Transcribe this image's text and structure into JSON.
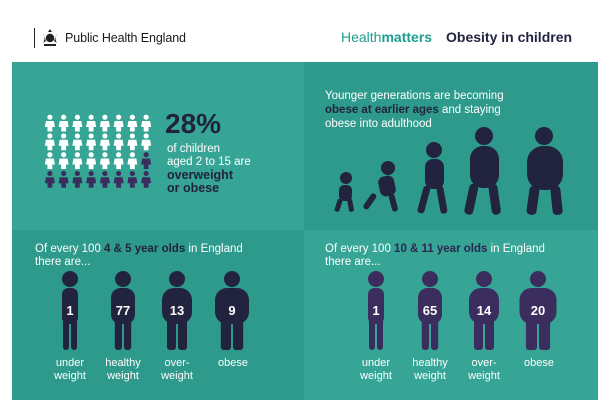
{
  "header": {
    "org_name": "Public Health England",
    "brand_light": "Health",
    "brand_bold": "matters",
    "topic": "Obesity in children"
  },
  "stat": {
    "percent": "28%",
    "line1": "of children",
    "line2": "aged 2 to 15 are",
    "emph1": "overweight",
    "emph2": "or obese",
    "share_dark": 0.28
  },
  "generations": {
    "line1_plain": "Younger generations are becoming",
    "line2_hl": "obese at earlier ages",
    "line2_plain": " and staying",
    "line3_plain": "obese into adulthood"
  },
  "group_4_5": {
    "prefix": "Of every 100 ",
    "hl": "4 & 5 year olds",
    "suffix": " in England",
    "line2": "there are...",
    "figures": [
      {
        "value": "1",
        "label1": "under",
        "label2": "weight"
      },
      {
        "value": "77",
        "label1": "healthy",
        "label2": "weight"
      },
      {
        "value": "13",
        "label1": "over-",
        "label2": "weight"
      },
      {
        "value": "9",
        "label1": "obese",
        "label2": ""
      }
    ]
  },
  "group_10_11": {
    "prefix": "Of every 100 ",
    "hl": "10 & 11 year olds",
    "suffix": " in England",
    "line2": "there are...",
    "figures": [
      {
        "value": "1",
        "label1": "under",
        "label2": "weight"
      },
      {
        "value": "65",
        "label1": "healthy",
        "label2": "weight"
      },
      {
        "value": "14",
        "label1": "over-",
        "label2": "weight"
      },
      {
        "value": "20",
        "label1": "obese",
        "label2": ""
      }
    ]
  },
  "colors": {
    "teal_light": "#36a595",
    "teal_dark": "#2d9a8b",
    "navy": "#22233f",
    "purple": "#3b2e5e",
    "brand": "#1d9e8f"
  },
  "icons": {
    "crest": "royal-crest-icon",
    "child": "child-figure-icon",
    "walker": "walking-person-icon"
  }
}
